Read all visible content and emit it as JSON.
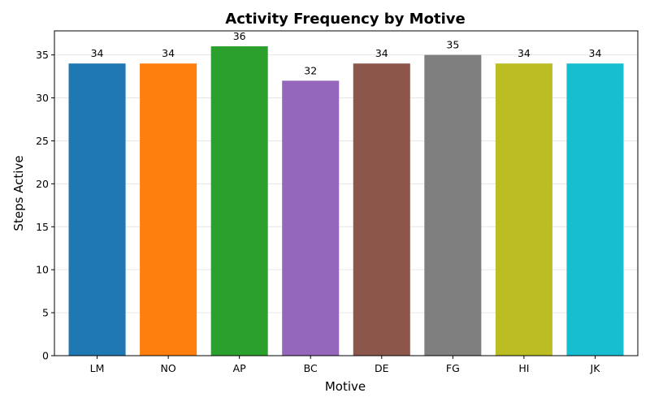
{
  "chart_data": {
    "type": "bar",
    "title": "Activity Frequency by Motive",
    "xlabel": "Motive",
    "ylabel": "Steps Active",
    "categories": [
      "LM",
      "NO",
      "AP",
      "BC",
      "DE",
      "FG",
      "HI",
      "JK"
    ],
    "values": [
      34,
      34,
      36,
      32,
      34,
      35,
      34,
      34
    ],
    "colors": [
      "#1f77b4",
      "#ff7f0e",
      "#2ca02c",
      "#9467bd",
      "#8c564b",
      "#7f7f7f",
      "#bcbd22",
      "#17becf"
    ],
    "ylim": [
      0,
      37.8
    ],
    "yticks": [
      0,
      5,
      10,
      15,
      20,
      25,
      30,
      35
    ],
    "grid": "y",
    "data_labels": true
  }
}
